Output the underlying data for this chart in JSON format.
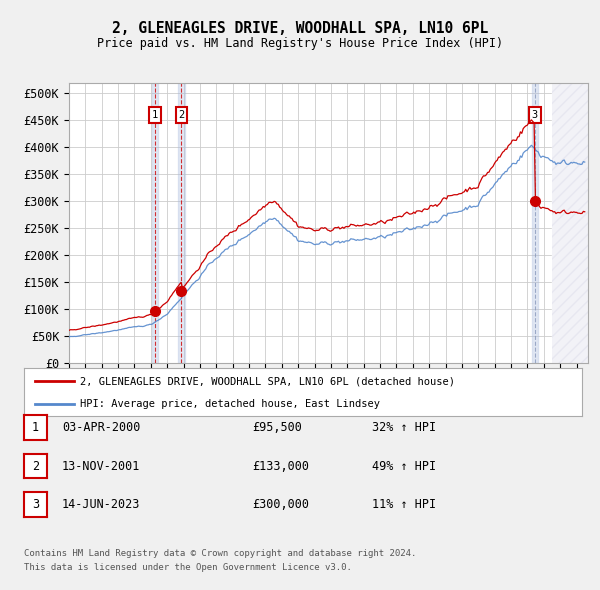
{
  "title": "2, GLENEAGLES DRIVE, WOODHALL SPA, LN10 6PL",
  "subtitle": "Price paid vs. HM Land Registry's House Price Index (HPI)",
  "ylim": [
    0,
    520000
  ],
  "yticks": [
    0,
    50000,
    100000,
    150000,
    200000,
    250000,
    300000,
    350000,
    400000,
    450000,
    500000
  ],
  "ytick_labels": [
    "£0",
    "£50K",
    "£100K",
    "£150K",
    "£200K",
    "£250K",
    "£300K",
    "£350K",
    "£400K",
    "£450K",
    "£500K"
  ],
  "hpi_color": "#5588cc",
  "price_color": "#cc0000",
  "bg_color": "#f0f0f0",
  "plot_bg_color": "#ffffff",
  "grid_color": "#cccccc",
  "highlight_color": "#aabbdd",
  "hatch_color": "#aaaacc",
  "transactions": [
    {
      "date": 2000.25,
      "price": 95500,
      "label": "1"
    },
    {
      "date": 2001.87,
      "price": 133000,
      "label": "2"
    },
    {
      "date": 2023.45,
      "price": 300000,
      "label": "3"
    }
  ],
  "legend_entries": [
    "2, GLENEAGLES DRIVE, WOODHALL SPA, LN10 6PL (detached house)",
    "HPI: Average price, detached house, East Lindsey"
  ],
  "table_rows": [
    [
      "1",
      "03-APR-2000",
      "£95,500",
      "32% ↑ HPI"
    ],
    [
      "2",
      "13-NOV-2001",
      "£133,000",
      "49% ↑ HPI"
    ],
    [
      "3",
      "14-JUN-2023",
      "£300,000",
      "11% ↑ HPI"
    ]
  ],
  "footer": [
    "Contains HM Land Registry data © Crown copyright and database right 2024.",
    "This data is licensed under the Open Government Licence v3.0."
  ]
}
